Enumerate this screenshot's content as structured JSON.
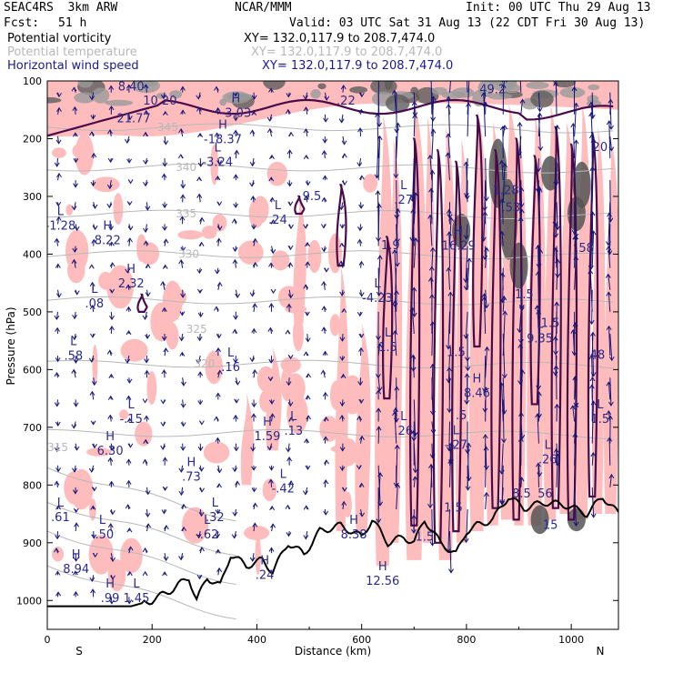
{
  "header": {
    "model": "SEAC4RS  3km ARW",
    "center": "NCAR/MMM",
    "init": "Init: 00 UTC Thu 29 Aug 13",
    "fcst_label": "Fcst:",
    "fcst_value": "51 h",
    "valid": "Valid: 03 UTC Sat 31 Aug 13 (22 CDT Fri 30 Aug 13)"
  },
  "legend": [
    {
      "field": "Potential vorticity",
      "xy": "XY= 132.0,117.9 to 208.7,474.0",
      "color": "#000000"
    },
    {
      "field": "Potential temperature",
      "xy": "XY= 132.0,117.9 to 208.7,474.0",
      "color": "#b8b8b8"
    },
    {
      "field": "Horizontal wind speed",
      "xy": "XY= 132.0,117.9 to 208.7,474.0",
      "color": "#1a1a8c"
    }
  ],
  "colors": {
    "pv_fill": "#ffbcbc",
    "pv_contour": "#4a0a4a",
    "theta": "#b8b8b8",
    "wind": "#14147a",
    "terrain": "#000000",
    "high_wind": "#8c8c8c"
  },
  "chart_data": {
    "type": "cross-section",
    "xlabel": "Distance (km)",
    "ylabel": "Pressure (hPa)",
    "xlim": [
      0,
      1090
    ],
    "ylim": [
      1050,
      100
    ],
    "x_ticks": [
      0,
      200,
      400,
      600,
      800,
      1000
    ],
    "y_ticks": [
      100,
      200,
      300,
      400,
      500,
      600,
      700,
      800,
      900,
      1000
    ],
    "left_end": "S",
    "right_end": "N",
    "isentropes": [
      {
        "label": "345",
        "x": 230,
        "p": 180
      },
      {
        "label": "340",
        "x": 265,
        "p": 250
      },
      {
        "label": "335",
        "x": 265,
        "p": 330
      },
      {
        "label": "330",
        "x": 270,
        "p": 400
      },
      {
        "label": "325",
        "x": 285,
        "p": 530
      },
      {
        "label": "320",
        "x": 300,
        "p": 590
      },
      {
        "label": "315",
        "x": 20,
        "p": 735
      }
    ],
    "theta_levels": [
      {
        "label": "345",
        "p": 180
      },
      {
        "label": "340",
        "p": 250
      },
      {
        "label": "335",
        "p": 330
      },
      {
        "label": "330",
        "p": 400
      },
      {
        "label": "325",
        "p": 480
      },
      {
        "label": "320",
        "p": 590
      },
      {
        "label": "315",
        "p": 710
      }
    ],
    "terrain": [
      {
        "x": 0,
        "p": 1010
      },
      {
        "x": 160,
        "p": 1010
      },
      {
        "x": 200,
        "p": 1000
      },
      {
        "x": 240,
        "p": 980
      },
      {
        "x": 270,
        "p": 960
      },
      {
        "x": 285,
        "p": 1000
      },
      {
        "x": 305,
        "p": 960
      },
      {
        "x": 330,
        "p": 975
      },
      {
        "x": 350,
        "p": 920
      },
      {
        "x": 380,
        "p": 940
      },
      {
        "x": 410,
        "p": 930
      },
      {
        "x": 430,
        "p": 950
      },
      {
        "x": 460,
        "p": 900
      },
      {
        "x": 490,
        "p": 920
      },
      {
        "x": 520,
        "p": 880
      },
      {
        "x": 560,
        "p": 870
      },
      {
        "x": 600,
        "p": 890
      },
      {
        "x": 620,
        "p": 860
      },
      {
        "x": 650,
        "p": 900
      },
      {
        "x": 680,
        "p": 890
      },
      {
        "x": 700,
        "p": 900
      },
      {
        "x": 720,
        "p": 860
      },
      {
        "x": 750,
        "p": 900
      },
      {
        "x": 780,
        "p": 920
      },
      {
        "x": 800,
        "p": 880
      },
      {
        "x": 820,
        "p": 870
      },
      {
        "x": 850,
        "p": 860
      },
      {
        "x": 880,
        "p": 820
      },
      {
        "x": 910,
        "p": 840
      },
      {
        "x": 950,
        "p": 830
      },
      {
        "x": 990,
        "p": 835
      },
      {
        "x": 1030,
        "p": 850
      },
      {
        "x": 1060,
        "p": 820
      },
      {
        "x": 1090,
        "p": 850
      }
    ],
    "highs_lows": [
      {
        "kind": "H",
        "value": "8.22",
        "x": 115,
        "p": 370
      },
      {
        "kind": "L",
        "value": "-1.28",
        "x": 25,
        "p": 345
      },
      {
        "kind": "H",
        "value": "2.32",
        "x": 160,
        "p": 445
      },
      {
        "kind": "L",
        "value": ".08",
        "x": 90,
        "p": 480
      },
      {
        "kind": "L",
        "value": ".58",
        "x": 50,
        "p": 570
      },
      {
        "kind": "L",
        "value": "-.15",
        "x": 160,
        "p": 680
      },
      {
        "kind": "H",
        "value": "6.30",
        "x": 120,
        "p": 735
      },
      {
        "kind": "H",
        "value": ".73",
        "x": 275,
        "p": 780
      },
      {
        "kind": "L",
        "value": ".61",
        "x": 25,
        "p": 850
      },
      {
        "kind": "L",
        "value": "-.50",
        "x": 105,
        "p": 880
      },
      {
        "kind": "H",
        "value": "8.94",
        "x": 55,
        "p": 940
      },
      {
        "kind": "H",
        "value": ".99",
        "x": 120,
        "p": 990
      },
      {
        "kind": "L",
        "value": "1.45",
        "x": 170,
        "p": 990
      },
      {
        "kind": "L",
        "value": ".32",
        "x": 320,
        "p": 850
      },
      {
        "kind": "L",
        "value": "-.62",
        "x": 305,
        "p": 880
      },
      {
        "kind": "H",
        "value": ".24",
        "x": 415,
        "p": 950
      },
      {
        "kind": "H",
        "value": "1.59",
        "x": 420,
        "p": 710
      },
      {
        "kind": "L",
        "value": ".13",
        "x": 470,
        "p": 700
      },
      {
        "kind": "L",
        "value": "-.42",
        "x": 450,
        "p": 800
      },
      {
        "kind": "L",
        "value": ".16",
        "x": 350,
        "p": 590
      },
      {
        "kind": "H",
        "value": "8.38",
        "x": 585,
        "p": 880
      },
      {
        "kind": "H",
        "value": "12.56",
        "x": 640,
        "p": 960
      },
      {
        "kind": "L",
        "value": ".26",
        "x": 680,
        "p": 700
      },
      {
        "kind": "L",
        "value": "-4.23",
        "x": 630,
        "p": 470
      },
      {
        "kind": "L",
        "value": "1.5",
        "x": 650,
        "p": 555
      },
      {
        "kind": "H",
        "value": "8.46",
        "x": 820,
        "p": 635
      },
      {
        "kind": "H",
        "value": "16.29",
        "x": 785,
        "p": 380
      },
      {
        "kind": "L",
        "value": "-.27",
        "x": 780,
        "p": 725
      },
      {
        "kind": "H",
        "value": "-3.03",
        "x": 360,
        "p": 150
      },
      {
        "kind": "H",
        "value": "-18.37",
        "x": 335,
        "p": 195
      },
      {
        "kind": "L",
        "value": "-3.24",
        "x": 325,
        "p": 235
      },
      {
        "kind": "L",
        "value": ".24",
        "x": 440,
        "p": 335
      },
      {
        "kind": "L",
        "value": ".27",
        "x": 680,
        "p": 300
      },
      {
        "kind": "L",
        "value": "9.35",
        "x": 940,
        "p": 540
      },
      {
        "kind": "L",
        "value": ".26",
        "x": 955,
        "p": 750
      },
      {
        "kind": "L",
        "value": "1.5",
        "x": 1055,
        "p": 680
      }
    ],
    "pv_labels": [
      {
        "value": "8.40",
        "x": 160,
        "p": 110
      },
      {
        "value": "10.20",
        "x": 215,
        "p": 135
      },
      {
        "value": "21.77",
        "x": 165,
        "p": 165
      },
      {
        "value": ".22",
        "x": 570,
        "p": 135
      },
      {
        "value": "9.5",
        "x": 505,
        "p": 300
      },
      {
        "value": "1.9",
        "x": 655,
        "p": 385
      },
      {
        "value": "1.5",
        "x": 780,
        "p": 570
      },
      {
        "value": ".5",
        "x": 790,
        "p": 680
      },
      {
        "value": "1.5",
        "x": 775,
        "p": 840
      },
      {
        "value": "1.5",
        "x": 720,
        "p": 890
      },
      {
        "value": "49.2",
        "x": 850,
        "p": 115
      },
      {
        "value": "1.28",
        "x": 875,
        "p": 290
      },
      {
        "value": ".53",
        "x": 885,
        "p": 320
      },
      {
        "value": "1.5",
        "x": 910,
        "p": 470
      },
      {
        "value": "1.5",
        "x": 960,
        "p": 520
      },
      {
        "value": "8.5",
        "x": 905,
        "p": 815
      },
      {
        "value": "56",
        "x": 950,
        "p": 815
      },
      {
        "value": "15",
        "x": 960,
        "p": 870
      },
      {
        "value": ".58",
        "x": 1025,
        "p": 390
      },
      {
        "value": "20",
        "x": 1055,
        "p": 215
      },
      {
        "value": "48",
        "x": 1050,
        "p": 575
      }
    ]
  }
}
